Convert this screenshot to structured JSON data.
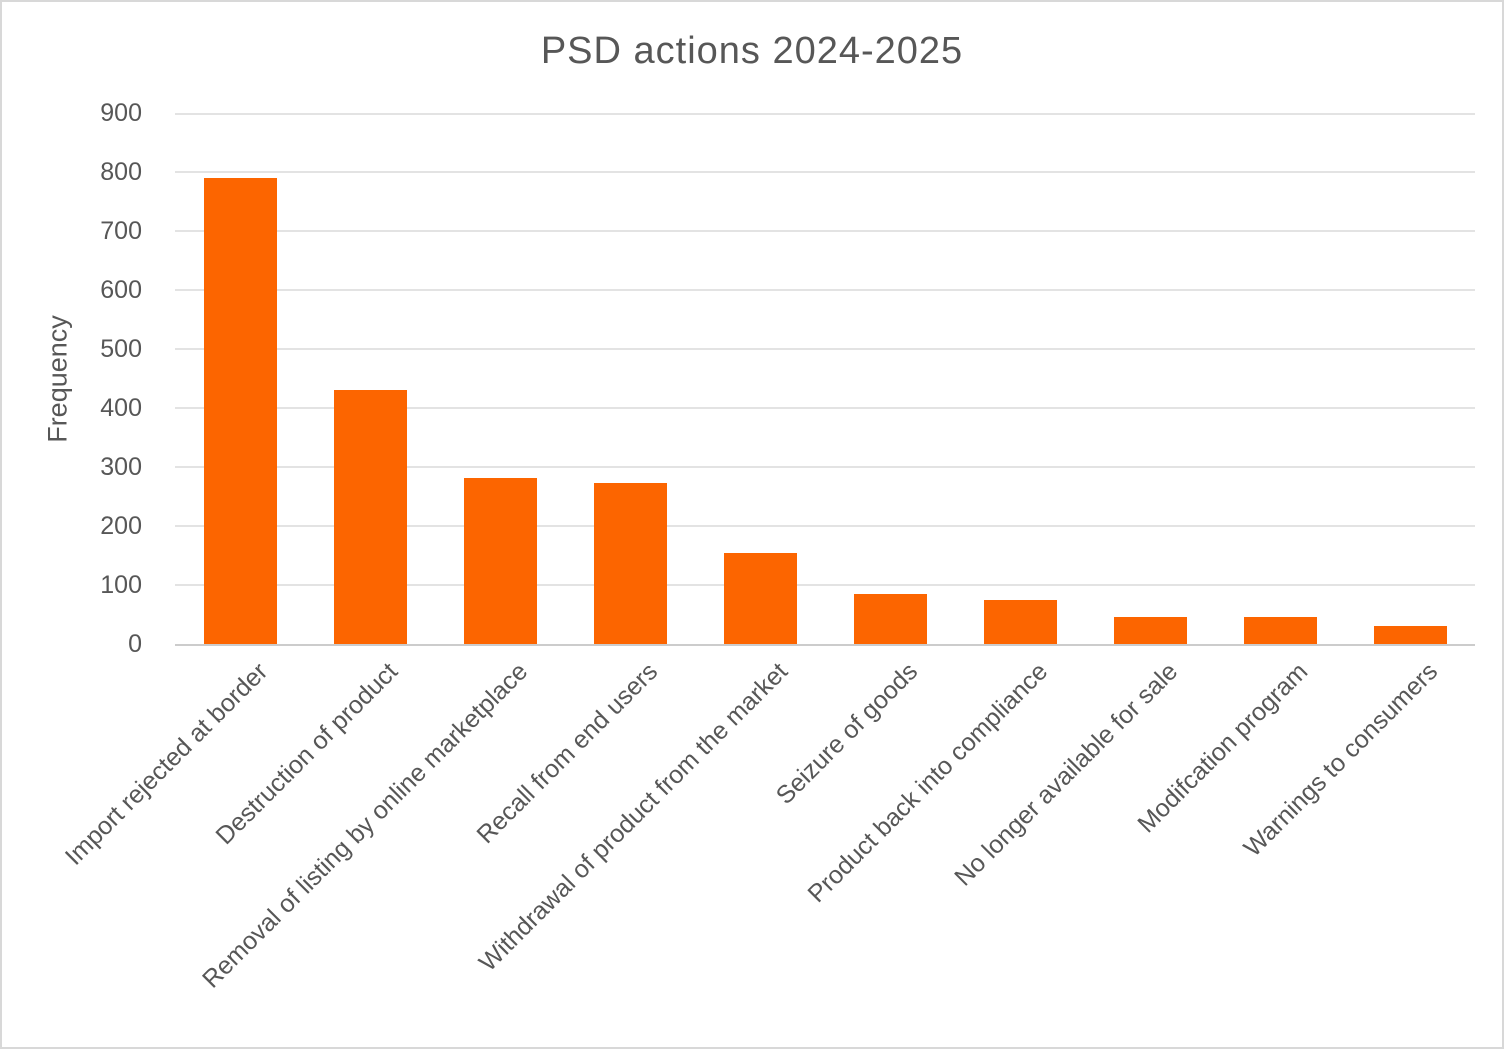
{
  "chart_data": {
    "type": "bar",
    "title": "PSD actions 2024-2025",
    "xlabel": "",
    "ylabel": "Frequency",
    "categories": [
      "Import rejected at border",
      "Destruction of product",
      "Removal of listing by online marketplace",
      "Recall from end users",
      "Withdrawal of product from the market",
      "Seizure of goods",
      "Product back into compliance",
      "No longer available for sale",
      "Modifcation program",
      "Warnings to consumers"
    ],
    "values": [
      790,
      430,
      282,
      273,
      155,
      84,
      75,
      45,
      45,
      30
    ],
    "ylim": [
      0,
      900
    ],
    "ytick_step": 100,
    "yticks": [
      0,
      100,
      200,
      300,
      400,
      500,
      600,
      700,
      800,
      900
    ],
    "grid": "horizontal",
    "legend_position": "none",
    "x_label_rotation_deg": 45
  },
  "theme": {
    "bar_color": "#FC6500",
    "text_color": "#575757",
    "grid_color": "#E3E3E3",
    "axis_color": "#CCCCCC",
    "border_color": "#D8D8D8",
    "background": "#FFFFFF"
  }
}
